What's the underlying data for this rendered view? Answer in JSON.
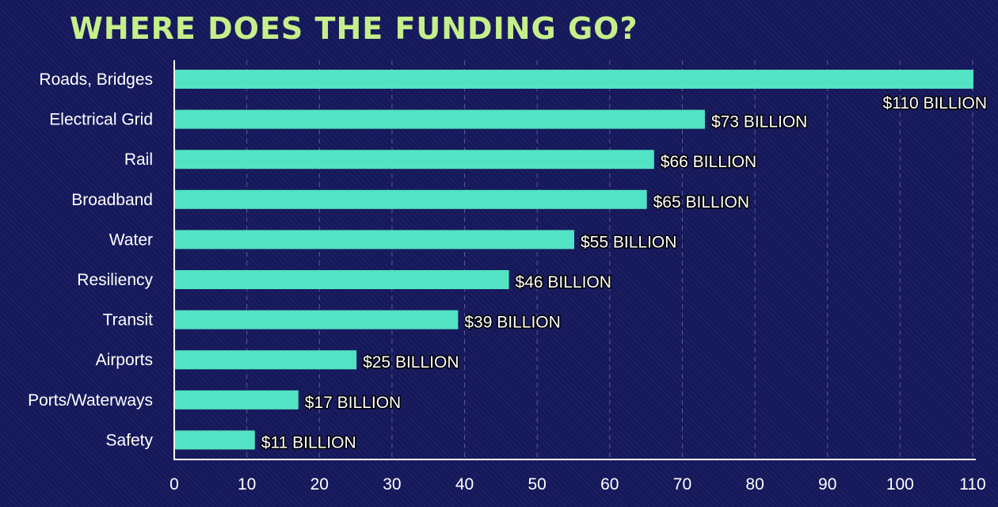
{
  "chart_data": {
    "type": "bar",
    "orientation": "horizontal",
    "title": "WHERE DOES THE FUNDING GO?",
    "categories": [
      "Roads, Bridges",
      "Electrical Grid",
      "Rail",
      "Broadband",
      "Water",
      "Resiliency",
      "Transit",
      "Airports",
      "Ports/Waterways",
      "Safety"
    ],
    "values": [
      110,
      73,
      66,
      65,
      55,
      46,
      39,
      25,
      17,
      11
    ],
    "data_labels": [
      "$110 BILLION",
      "$73 BILLION",
      "$66 BILLION",
      "$65 BILLION",
      "$55 BILLION",
      "$46 BILLION",
      "$39 BILLION",
      "$25 BILLION",
      "$17 BILLION",
      "$11 BILLION"
    ],
    "xlim": [
      0,
      110
    ],
    "xticks": [
      0,
      10,
      20,
      30,
      40,
      50,
      60,
      70,
      80,
      90,
      100,
      110
    ],
    "xtick_labels": [
      "0",
      "10",
      "20",
      "30",
      "40",
      "50",
      "60",
      "70",
      "80",
      "90",
      "100",
      "110"
    ],
    "xlabel": "",
    "ylabel": "",
    "grid": "vertical dashed",
    "legend": "none",
    "colors": {
      "background": "#15185a",
      "bar": "#52e3c4",
      "title": "#c6ee8a",
      "text": "#ffffff"
    }
  }
}
